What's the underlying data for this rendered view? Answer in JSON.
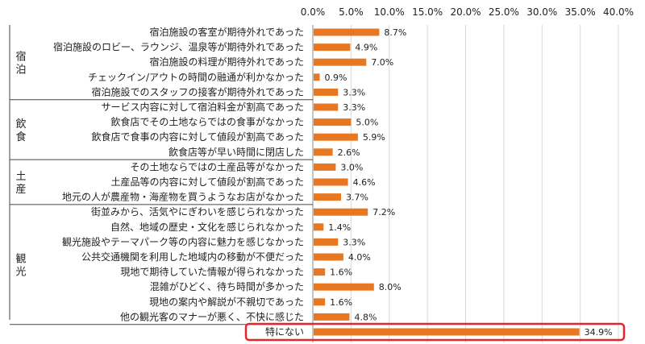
{
  "chart_data": {
    "type": "bar",
    "orientation": "horizontal",
    "xlim": [
      0,
      40
    ],
    "x_ticks": [
      "0.0%",
      "5.0%",
      "10.0%",
      "15.0%",
      "20.0%",
      "25.0%",
      "30.0%",
      "35.0%",
      "40.0%"
    ],
    "tick_values": [
      0,
      5,
      10,
      15,
      20,
      25,
      30,
      35,
      40
    ],
    "grid": true,
    "bar_color": "#E87722",
    "highlight_color": "#E8262A",
    "groups": [
      {
        "label": "宿\n泊",
        "start": 0,
        "end": 5
      },
      {
        "label": "飲\n食",
        "start": 5,
        "end": 9
      },
      {
        "label": "土\n産",
        "start": 9,
        "end": 12
      },
      {
        "label": "観\n光",
        "start": 12,
        "end": 20
      },
      {
        "label": "",
        "start": 20,
        "end": 21
      }
    ],
    "categories": [
      "宿泊施設の客室が期待外れであった",
      "宿泊施設のロビー、ラウンジ、温泉等が期待外れであった",
      "宿泊施設の料理が期待外れであった",
      "チェックイン/アウトの時間の融通が利かなかった",
      "宿泊施設でのスタッフの接客が期待外れであった",
      "サービス内容に対して宿泊料金が割高であった",
      "飲食店でその土地ならではの食事がなかった",
      "飲食店で食事の内容に対して値段が割高であった",
      "飲食店等が早い時間に閉店した",
      "その土地ならではの土産品等がなかった",
      "土産品等の内容に対して値段が割高であった",
      "地元の人が農産物・海産物を買うようなお店がなかった",
      "街並みから、活気やにぎわいを感じられなかった",
      "自然、地域の歴史・文化を感じられなかった",
      "観光施設やテーマパーク等の内容に魅力を感じなかった",
      "公共交通機関を利用した地域内の移動が不便だった",
      "現地で期待していた情報が得られなかった",
      "混雑がひどく、待ち時間が多かった",
      "現地の案内や解説が不親切であった",
      "他の観光客のマナーが悪く、不快に感じた",
      "特にない"
    ],
    "values": [
      8.7,
      4.9,
      7.0,
      0.9,
      3.3,
      3.3,
      5.0,
      5.9,
      2.6,
      3.0,
      4.6,
      3.7,
      7.2,
      1.4,
      3.3,
      4.0,
      1.6,
      8.0,
      1.6,
      4.8,
      34.9
    ],
    "value_labels": [
      "8.7%",
      "4.9%",
      "7.0%",
      "0.9%",
      "3.3%",
      "3.3%",
      "5.0%",
      "5.9%",
      "2.6%",
      "3.0%",
      "4.6%",
      "3.7%",
      "7.2%",
      "1.4%",
      "3.3%",
      "4.0%",
      "1.6%",
      "8.0%",
      "1.6%",
      "4.8%",
      "34.9%"
    ],
    "highlighted_index": 20
  }
}
